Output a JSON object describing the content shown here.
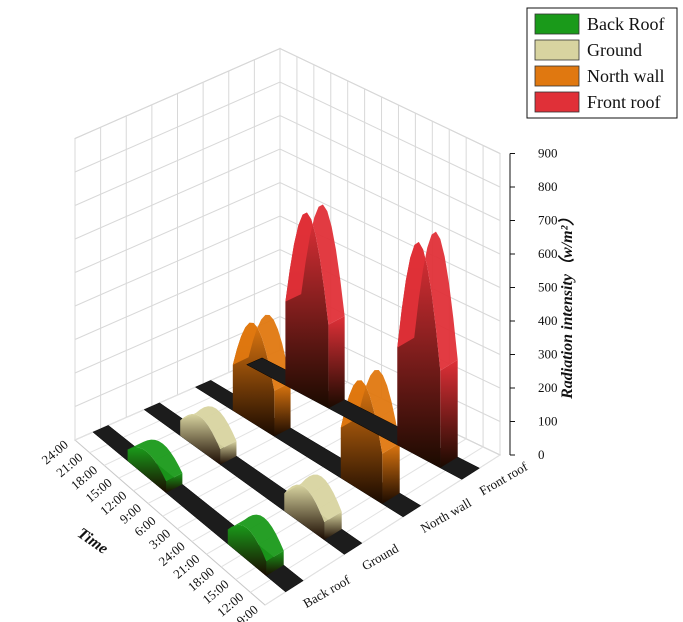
{
  "chart_data": {
    "type": "3d-area",
    "series_axis": {
      "categories": [
        "Back roof",
        "Ground",
        "North wall",
        "Front roof"
      ]
    },
    "time_axis": {
      "ticks": [
        "24:00",
        "21:00",
        "18:00",
        "15:00",
        "12:00",
        "9:00",
        "6:00",
        "3:00",
        "24:00",
        "21:00",
        "18:00",
        "15:00",
        "12:00",
        "9:00"
      ],
      "label": "Time"
    },
    "z_axis": {
      "label": "Radiation intensity（w/m²）",
      "range": [
        0,
        900
      ],
      "ticks": [
        "0",
        "100",
        "200",
        "300",
        "400",
        "500",
        "600",
        "700",
        "800",
        "900"
      ]
    },
    "legend": {
      "position": "top-right",
      "items": [
        {
          "label": "Back Roof",
          "color": "#1a9a1a"
        },
        {
          "label": "Ground",
          "color": "#d8d4a0"
        },
        {
          "label": "North wall",
          "color": "#e07810"
        },
        {
          "label": "Front roof",
          "color": "#e03038"
        }
      ]
    },
    "series": [
      {
        "name": "Back Roof",
        "color": "#1a9a1a",
        "day1_peak": 75,
        "day2_peak": 95
      },
      {
        "name": "Ground",
        "color": "#d8d4a0",
        "day1_peak": 100,
        "day2_peak": 115
      },
      {
        "name": "North wall",
        "color": "#e07810",
        "day1_peak": 300,
        "day2_peak": 330
      },
      {
        "name": "Front roof",
        "color": "#e03038",
        "day1_peak": 550,
        "day2_peak": 640
      }
    ]
  }
}
